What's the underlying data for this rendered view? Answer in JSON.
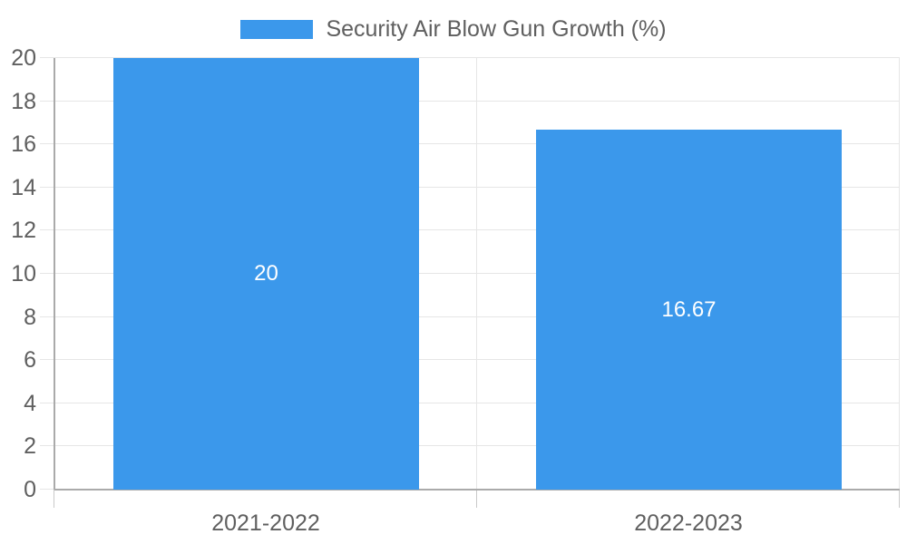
{
  "legend": {
    "label": "Security Air Blow Gun Growth (%)",
    "swatch_color": "#3b98eb"
  },
  "colors": {
    "bar": "#3b98eb",
    "text": "#5f5f5f",
    "grid": "#e6e6e6",
    "axis": "#aaaaaa",
    "tick": "#c9c9c9"
  },
  "chart_data": {
    "type": "bar",
    "title": "Security Air Blow Gun Growth (%)",
    "categories": [
      "2021-2022",
      "2022-2023"
    ],
    "series": [
      {
        "name": "Security Air Blow Gun Growth (%)",
        "values": [
          20,
          16.67
        ]
      }
    ],
    "values": [
      20,
      16.67
    ],
    "bar_value_labels": [
      "20",
      "16.67"
    ],
    "xlabel": "",
    "ylabel": "",
    "ylim": [
      0,
      20
    ],
    "yticks": [
      0,
      2,
      4,
      6,
      8,
      10,
      12,
      14,
      16,
      18,
      20
    ],
    "grid": true,
    "legend_position": "top-center",
    "bar_color": "#3b98eb",
    "value_label_position": "center-of-bar"
  }
}
